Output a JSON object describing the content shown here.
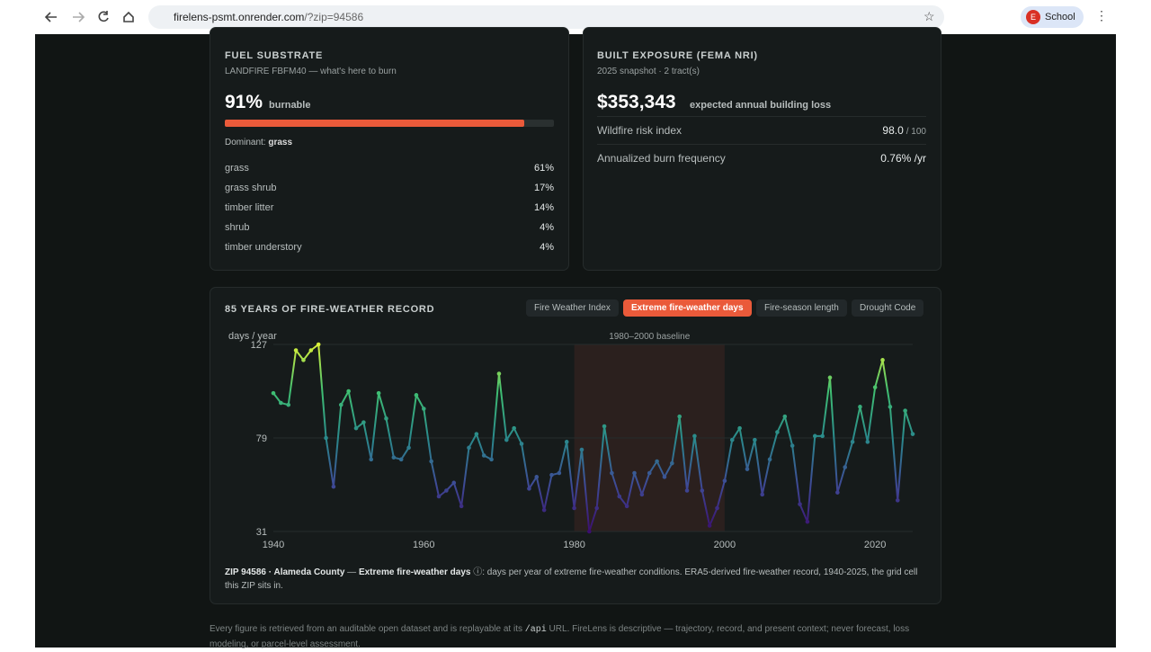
{
  "browser": {
    "url_host": "firelens-psmt.onrender.com",
    "url_path": "/?zip=94586",
    "profile_initial": "E",
    "profile_name": "School"
  },
  "fuel": {
    "title": "FUEL SUBSTRATE",
    "subtitle": "LANDFIRE FBFM40 — what's here to burn",
    "value": 91,
    "value_label": "91%",
    "unit": "burnable",
    "dominant_label": "Dominant:",
    "dominant": "grass",
    "rows": [
      [
        "grass",
        "61%"
      ],
      [
        "grass shrub",
        "17%"
      ],
      [
        "timber litter",
        "14%"
      ],
      [
        "shrub",
        "4%"
      ],
      [
        "timber understory",
        "4%"
      ]
    ]
  },
  "exposure": {
    "title": "BUILT EXPOSURE (FEMA NRI)",
    "subtitle": "2025 snapshot · 2 tract(s)",
    "headline": "$353,343",
    "headline_unit": "expected annual building loss",
    "rows": [
      [
        "Wildfire risk index",
        "98.0",
        "/ 100"
      ],
      [
        "Annualized burn frequency",
        "0.76% /yr",
        ""
      ]
    ]
  },
  "chart_card": {
    "title": "85 YEARS OF FIRE-WEATHER RECORD",
    "tabs": [
      "Fire Weather Index",
      "Extreme fire-weather days",
      "Fire-season length",
      "Drought Code"
    ],
    "active_tab": 1,
    "caption_place": "ZIP 94586 · Alameda County",
    "caption_dash": " — ",
    "caption_metric": "Extreme fire-weather days",
    "caption_text": " ⓘ: days per year of extreme fire-weather conditions. ERA5-derived fire-weather record, 1940-2025, the grid cell this ZIP sits in."
  },
  "chart_data": {
    "type": "line",
    "y_label": "days / year",
    "baseline": {
      "label": "1980–2000 baseline",
      "start": 1980,
      "end": 2000
    },
    "x": [
      1940,
      1941,
      1942,
      1943,
      1944,
      1945,
      1946,
      1947,
      1948,
      1949,
      1950,
      1951,
      1952,
      1953,
      1954,
      1955,
      1956,
      1957,
      1958,
      1959,
      1960,
      1961,
      1962,
      1963,
      1964,
      1965,
      1966,
      1967,
      1968,
      1969,
      1970,
      1971,
      1972,
      1973,
      1974,
      1975,
      1976,
      1977,
      1978,
      1979,
      1980,
      1981,
      1982,
      1983,
      1984,
      1985,
      1986,
      1987,
      1988,
      1989,
      1990,
      1991,
      1992,
      1993,
      1994,
      1995,
      1996,
      1997,
      1998,
      1999,
      2000,
      2001,
      2002,
      2003,
      2004,
      2005,
      2006,
      2007,
      2008,
      2009,
      2010,
      2011,
      2012,
      2013,
      2014,
      2015,
      2016,
      2017,
      2018,
      2019,
      2020,
      2021,
      2022,
      2023,
      2024,
      2025
    ],
    "values": [
      102,
      97,
      96,
      124,
      119,
      124,
      127,
      79,
      54,
      96,
      103,
      84,
      87,
      68,
      102,
      89,
      69,
      68,
      74,
      101,
      94,
      67,
      49,
      52,
      56,
      44,
      74,
      81,
      70,
      68,
      112,
      78,
      84,
      76,
      53,
      59,
      42,
      60,
      61,
      77,
      43,
      73,
      31,
      43,
      85,
      61,
      49,
      44,
      61,
      50,
      61,
      67,
      59,
      66,
      90,
      52,
      80,
      52,
      34,
      43,
      57,
      78,
      84,
      63,
      78,
      50,
      68,
      82,
      90,
      75,
      45,
      36,
      80,
      80,
      110,
      51,
      64,
      77,
      95,
      77,
      105,
      119,
      95,
      47,
      93,
      81
    ],
    "colormap": [
      "#3b0f6f",
      "#3e4a96",
      "#2a8a8c",
      "#3fbf72",
      "#d8f03a"
    ],
    "xlim": [
      1940,
      2025
    ],
    "ylim": [
      31,
      127
    ],
    "xticks": [
      1940,
      1960,
      1980,
      2000,
      2020
    ],
    "yticks": [
      31,
      79,
      127
    ],
    "grid": true
  },
  "footer": {
    "before": "Every figure is retrieved from an auditable open dataset and is replayable at its ",
    "code": "/api",
    "after": " URL. FireLens is descriptive — trajectory, record, and present context; never forecast, loss modeling, or parcel-level assessment."
  }
}
